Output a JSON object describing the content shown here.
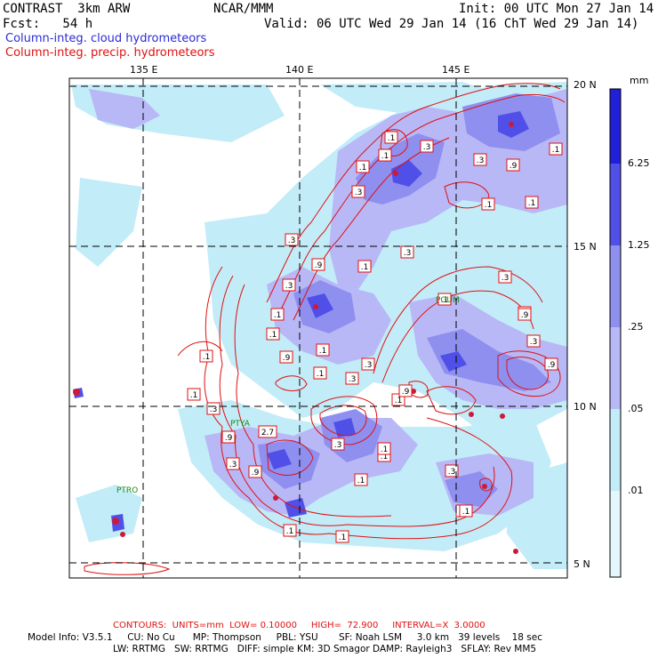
{
  "header": {
    "model": "CONTRAST  3km ARW",
    "forecast": "Fcst:   54 h",
    "org": "NCAR/MMM",
    "init": "Init: 00 UTC Mon 27 Jan 14",
    "valid": "Valid: 06 UTC Wed 29 Jan 14 (16 ChT Wed 29 Jan 14)",
    "field1": "Column-integ. cloud hydrometeors",
    "field2": "Column-integ. precip. hydrometeors"
  },
  "map": {
    "lon_labels": [
      "135 E",
      "140 E",
      "145 E"
    ],
    "lat_labels": [
      "20 N",
      "15 N",
      "10 N",
      "5 N"
    ],
    "stations": [
      {
        "id": "PGUM",
        "label": "PGUM"
      },
      {
        "id": "PTYA",
        "label": "PTYA"
      },
      {
        "id": "PTRO",
        "label": "PTRO"
      }
    ],
    "contour_labels": [
      ".1",
      ".1",
      ".3",
      ".1",
      ".1",
      ".3",
      ".9",
      ".3",
      ".1",
      ".1",
      ".3",
      ".3",
      ".9",
      ".1",
      ".3",
      ".3",
      ".1",
      ".1",
      ".1",
      ".1",
      ".9",
      ".3",
      ".1",
      ".3",
      ".9",
      ".3",
      ".1",
      ".1",
      ".3",
      ".9",
      "2.7",
      ".3",
      ".9",
      ".1",
      ".3",
      ".1",
      ".1",
      ".1",
      ".9",
      ".1",
      ".3",
      ".1",
      ".1",
      ".9",
      ".1",
      ".1"
    ]
  },
  "colorbar": {
    "unit": "mm",
    "labels": [
      "6.25",
      "1.25",
      ".25",
      ".05",
      ".01"
    ],
    "colors": [
      "#2020d8",
      "#5050e8",
      "#8f8ff0",
      "#b8b8f6",
      "#c2ecf8",
      "#e4f8fc"
    ]
  },
  "footer": {
    "contours": "CONTOURS:  UNITS=mm  LOW= 0.10000     HIGH=  72.900     INTERVAL=X  3.0000",
    "line1": "Model Info: V3.5.1     CU: No Cu      MP: Thompson     PBL: YSU       SF: Noah LSM     3.0 km   39 levels    18 sec",
    "line2": "LW: RRTMG   SW: RRTMG   DIFF: simple KM: 3D Smagor DAMP: Rayleigh3   SFLAY: Rev MM5"
  }
}
